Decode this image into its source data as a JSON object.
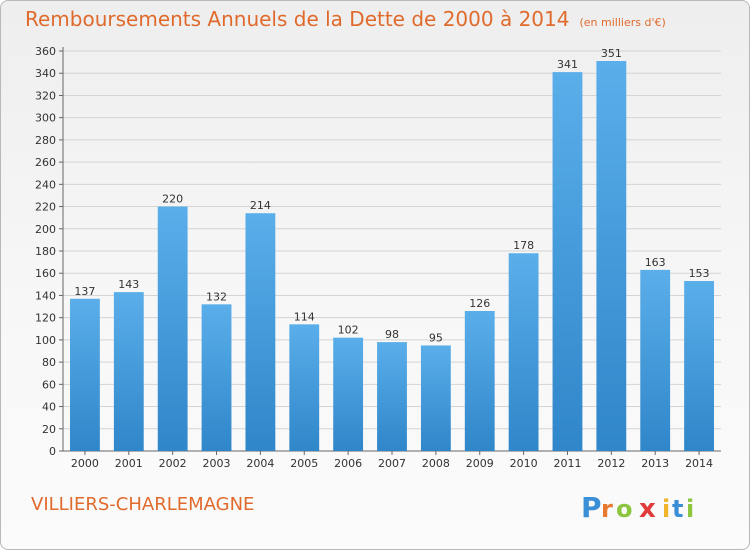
{
  "header": {
    "title": "Remboursements Annuels de la Dette de 2000 à 2014",
    "unit": "(en milliers d'€)"
  },
  "footer": {
    "commune": "VILLIERS-CHARLEMAGNE",
    "logo_text": "Proxiti"
  },
  "colors": {
    "bar_light": "#5aaeea",
    "bar_dark": "#2f86c9",
    "title": "#e06a2c"
  },
  "chart_data": {
    "type": "bar",
    "title": "Remboursements Annuels de la Dette de 2000 à 2014",
    "xlabel": "",
    "ylabel": "",
    "categories": [
      "2000",
      "2001",
      "2002",
      "2003",
      "2004",
      "2005",
      "2006",
      "2007",
      "2008",
      "2009",
      "2010",
      "2011",
      "2012",
      "2013",
      "2014"
    ],
    "values": [
      137,
      143,
      220,
      132,
      214,
      114,
      102,
      98,
      95,
      126,
      178,
      341,
      351,
      163,
      153
    ],
    "ylim": [
      0,
      360
    ],
    "yticks": [
      0,
      20,
      40,
      60,
      80,
      100,
      120,
      140,
      160,
      180,
      200,
      220,
      240,
      260,
      280,
      300,
      320,
      340,
      360
    ],
    "grid": true,
    "legend": "none"
  }
}
